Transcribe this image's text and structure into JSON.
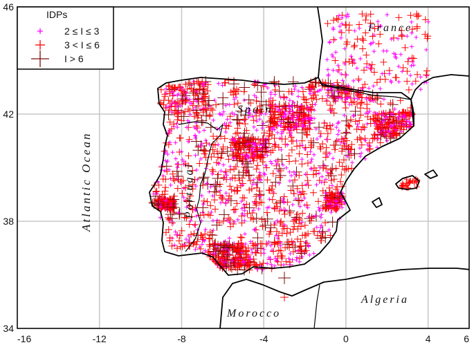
{
  "map": {
    "lon_range": [
      -16,
      6
    ],
    "lat_range": [
      34,
      46
    ],
    "x_ticks": [
      -16,
      -12,
      -8,
      -4,
      0,
      4,
      6
    ],
    "x_tick_labels": [
      "-16",
      "-12",
      "-8",
      "-4",
      "0",
      "4",
      "6"
    ],
    "y_ticks": [
      34,
      38,
      42,
      46
    ],
    "y_tick_labels": [
      "34",
      "38",
      "42",
      "46"
    ],
    "grid": true
  },
  "legend": {
    "title": "IDPs",
    "items": [
      {
        "label": "2 ≤ I ≤ 3",
        "color": "#ff00ff",
        "size": "small"
      },
      {
        "label": "3 < I ≤ 6",
        "color": "#ff0000",
        "size": "medium"
      },
      {
        "label": "I > 6",
        "color": "#7a0a0a",
        "size": "large"
      }
    ],
    "placement": "top-left"
  },
  "labels": {
    "atlantic": "Atlantic  Ocean",
    "spain": "Spain",
    "portugal": "Portugal",
    "france": "France",
    "morocco": "Morocco",
    "algeria": "Algeria"
  },
  "colors": {
    "intensity_low": "#ff00ff",
    "intensity_mid": "#ff0000",
    "intensity_high": "#7a0a0a",
    "coastline": "#000000",
    "grid": "#c8c8c8"
  }
}
